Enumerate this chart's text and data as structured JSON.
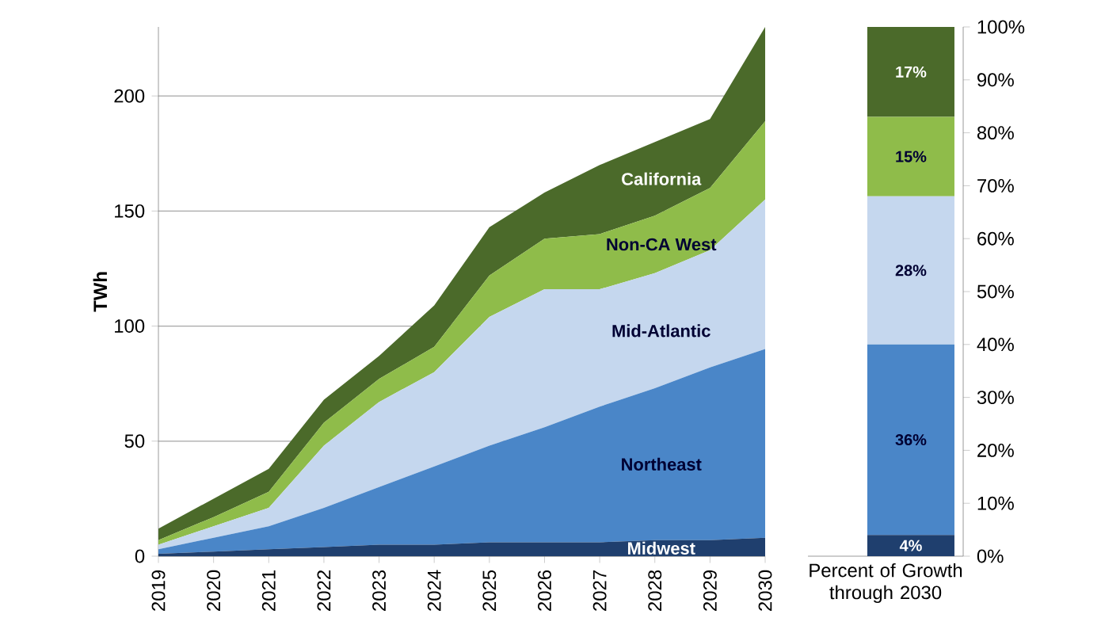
{
  "chart_data": [
    {
      "type": "area",
      "stacked": true,
      "ylabel": "TWh",
      "x": [
        2019,
        2020,
        2021,
        2022,
        2023,
        2024,
        2025,
        2026,
        2027,
        2028,
        2029,
        2030
      ],
      "xlim": [
        2019,
        2030
      ],
      "xticks": [
        2019,
        2020,
        2021,
        2022,
        2023,
        2024,
        2025,
        2026,
        2027,
        2028,
        2029,
        2030
      ],
      "ylim": [
        0,
        230
      ],
      "yticks": [
        0,
        50,
        100,
        150,
        200
      ],
      "grid": "y",
      "series": [
        {
          "name": "Midwest",
          "color": "#1f3f6e",
          "values": [
            1,
            2,
            3,
            4,
            5,
            5,
            6,
            6,
            6,
            7,
            7,
            8
          ]
        },
        {
          "name": "Northeast",
          "color": "#4a86c8",
          "values": [
            2,
            6,
            10,
            17,
            25,
            34,
            42,
            50,
            59,
            66,
            75,
            82
          ]
        },
        {
          "name": "Mid-Atlantic",
          "color": "#c5d7ee",
          "values": [
            2,
            5,
            8,
            27,
            37,
            41,
            56,
            60,
            51,
            50,
            51,
            65
          ]
        },
        {
          "name": "Non-CA West",
          "color": "#8fbc4a",
          "values": [
            2,
            4,
            7,
            10,
            10,
            11,
            18,
            22,
            24,
            25,
            27,
            34
          ]
        },
        {
          "name": "California",
          "color": "#4b6a2a",
          "values": [
            5,
            8,
            10,
            10,
            10,
            18,
            21,
            20,
            30,
            32,
            30,
            41
          ]
        }
      ]
    },
    {
      "type": "bar",
      "stacked": true,
      "categories": [
        null
      ],
      "xlabel": "Percent of Growth through 2030",
      "ylim": [
        0,
        100
      ],
      "yticks": [
        {
          "value": 0,
          "label": "0%"
        },
        {
          "value": 10,
          "label": "10%"
        },
        {
          "value": 20,
          "label": "20%"
        },
        {
          "value": 30,
          "label": "30%"
        },
        {
          "value": 40,
          "label": "40%"
        },
        {
          "value": 50,
          "label": "50%"
        },
        {
          "value": 60,
          "label": "60%"
        },
        {
          "value": 70,
          "label": "70%"
        },
        {
          "value": 80,
          "label": "80%"
        },
        {
          "value": 90,
          "label": "90%"
        },
        {
          "value": 100,
          "label": "100%"
        }
      ],
      "series": [
        {
          "color": "#1f3f6e",
          "values": [
            4
          ],
          "value_labels": [
            "4%"
          ]
        },
        {
          "color": "#4a86c8",
          "values": [
            36
          ],
          "value_labels": [
            "36%"
          ]
        },
        {
          "color": "#c5d7ee",
          "values": [
            28
          ],
          "value_labels": [
            "28%"
          ]
        },
        {
          "color": "#8fbc4a",
          "values": [
            15
          ],
          "value_labels": [
            "15%"
          ]
        },
        {
          "color": "#4b6a2a",
          "values": [
            17
          ],
          "value_labels": [
            "17%"
          ]
        }
      ]
    }
  ]
}
